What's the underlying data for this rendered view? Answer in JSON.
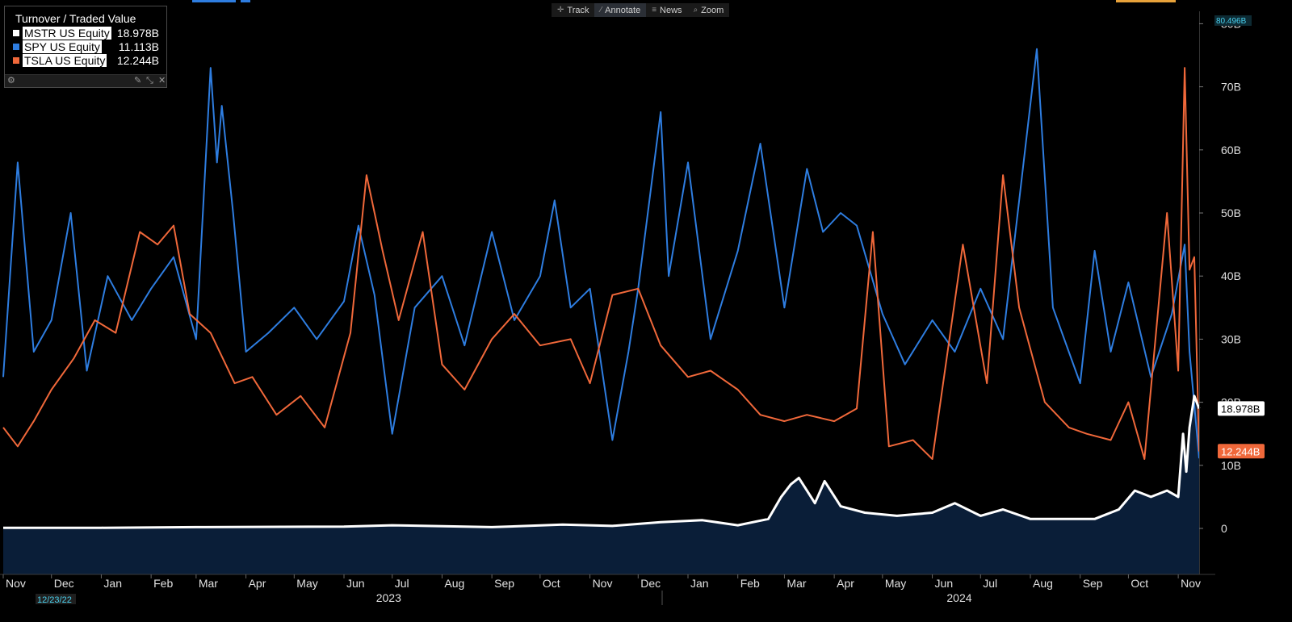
{
  "toolbar": {
    "track": "Track",
    "annotate": "Annotate",
    "news": "News",
    "zoom": "Zoom"
  },
  "legend": {
    "title": "Turnover / Traded Value",
    "items": [
      {
        "name": "MSTR US Equity",
        "value": "18.978B",
        "color": "#ffffff"
      },
      {
        "name": "SPY US Equity",
        "value": "11.113B",
        "color": "#2e7de0"
      },
      {
        "name": "TSLA US Equity",
        "value": "12.244B",
        "color": "#f0683a"
      }
    ],
    "footer_icons": [
      "gear-icon",
      "pin-icon",
      "collapse-icon",
      "close-icon"
    ]
  },
  "badges": {
    "top": "80.496B",
    "mstr": "18.978B",
    "tsla": "12.244B",
    "date": "12/23/22"
  },
  "chart_data": {
    "type": "line",
    "title": "Turnover / Traded Value",
    "y_unit": "B",
    "ylim": [
      -7,
      82
    ],
    "y_ticks": [
      "0",
      "10B",
      "20B",
      "30B",
      "40B",
      "50B",
      "60B",
      "70B",
      "80B"
    ],
    "x_tick_labels": [
      "Nov",
      "Dec",
      "Jan",
      "Feb",
      "Mar",
      "Apr",
      "May",
      "Jun",
      "Jul",
      "Aug",
      "Sep",
      "Oct",
      "Nov",
      "Dec",
      "Jan",
      "Feb",
      "Mar",
      "Apr",
      "May",
      "Jun",
      "Jul",
      "Aug",
      "Sep",
      "Oct",
      "Nov"
    ],
    "year_labels": [
      "2023",
      "2024"
    ],
    "x_start": "2022-11-01",
    "x_end": "2024-11-14",
    "series": [
      {
        "name": "SPY US Equity",
        "color": "#2e7de0",
        "values": [
          {
            "date": "2022-11-01",
            "v": 24
          },
          {
            "date": "2022-11-10",
            "v": 58
          },
          {
            "date": "2022-11-20",
            "v": 28
          },
          {
            "date": "2022-12-01",
            "v": 33
          },
          {
            "date": "2022-12-13",
            "v": 50
          },
          {
            "date": "2022-12-23",
            "v": 25
          },
          {
            "date": "2023-01-05",
            "v": 40
          },
          {
            "date": "2023-01-20",
            "v": 33
          },
          {
            "date": "2023-02-01",
            "v": 38
          },
          {
            "date": "2023-02-15",
            "v": 43
          },
          {
            "date": "2023-03-01",
            "v": 30
          },
          {
            "date": "2023-03-10",
            "v": 73
          },
          {
            "date": "2023-03-14",
            "v": 58
          },
          {
            "date": "2023-03-17",
            "v": 67
          },
          {
            "date": "2023-03-24",
            "v": 50
          },
          {
            "date": "2023-04-01",
            "v": 28
          },
          {
            "date": "2023-04-15",
            "v": 31
          },
          {
            "date": "2023-05-01",
            "v": 35
          },
          {
            "date": "2023-05-15",
            "v": 30
          },
          {
            "date": "2023-06-01",
            "v": 36
          },
          {
            "date": "2023-06-10",
            "v": 48
          },
          {
            "date": "2023-06-20",
            "v": 37
          },
          {
            "date": "2023-07-01",
            "v": 15
          },
          {
            "date": "2023-07-15",
            "v": 35
          },
          {
            "date": "2023-08-01",
            "v": 40
          },
          {
            "date": "2023-08-15",
            "v": 29
          },
          {
            "date": "2023-09-01",
            "v": 47
          },
          {
            "date": "2023-09-15",
            "v": 33
          },
          {
            "date": "2023-10-01",
            "v": 40
          },
          {
            "date": "2023-10-10",
            "v": 52
          },
          {
            "date": "2023-10-20",
            "v": 35
          },
          {
            "date": "2023-11-01",
            "v": 38
          },
          {
            "date": "2023-11-15",
            "v": 14
          },
          {
            "date": "2023-11-25",
            "v": 28
          },
          {
            "date": "2023-12-01",
            "v": 38
          },
          {
            "date": "2023-12-15",
            "v": 66
          },
          {
            "date": "2023-12-20",
            "v": 40
          },
          {
            "date": "2024-01-01",
            "v": 58
          },
          {
            "date": "2024-01-15",
            "v": 30
          },
          {
            "date": "2024-02-01",
            "v": 44
          },
          {
            "date": "2024-02-15",
            "v": 61
          },
          {
            "date": "2024-03-01",
            "v": 35
          },
          {
            "date": "2024-03-15",
            "v": 57
          },
          {
            "date": "2024-03-25",
            "v": 47
          },
          {
            "date": "2024-04-05",
            "v": 50
          },
          {
            "date": "2024-04-15",
            "v": 48
          },
          {
            "date": "2024-05-01",
            "v": 34
          },
          {
            "date": "2024-05-15",
            "v": 26
          },
          {
            "date": "2024-06-01",
            "v": 33
          },
          {
            "date": "2024-06-15",
            "v": 28
          },
          {
            "date": "2024-07-01",
            "v": 38
          },
          {
            "date": "2024-07-15",
            "v": 30
          },
          {
            "date": "2024-08-05",
            "v": 76
          },
          {
            "date": "2024-08-15",
            "v": 35
          },
          {
            "date": "2024-09-01",
            "v": 23
          },
          {
            "date": "2024-09-10",
            "v": 44
          },
          {
            "date": "2024-09-20",
            "v": 28
          },
          {
            "date": "2024-10-01",
            "v": 39
          },
          {
            "date": "2024-10-15",
            "v": 24
          },
          {
            "date": "2024-10-28",
            "v": 34
          },
          {
            "date": "2024-11-05",
            "v": 45
          },
          {
            "date": "2024-11-08",
            "v": 28
          },
          {
            "date": "2024-11-14",
            "v": 11.1
          }
        ]
      },
      {
        "name": "TSLA US Equity",
        "color": "#f0683a",
        "values": [
          {
            "date": "2022-11-01",
            "v": 16
          },
          {
            "date": "2022-11-10",
            "v": 13
          },
          {
            "date": "2022-11-20",
            "v": 17
          },
          {
            "date": "2022-12-01",
            "v": 22
          },
          {
            "date": "2022-12-15",
            "v": 27
          },
          {
            "date": "2022-12-28",
            "v": 33
          },
          {
            "date": "2023-01-10",
            "v": 31
          },
          {
            "date": "2023-01-25",
            "v": 47
          },
          {
            "date": "2023-02-05",
            "v": 45
          },
          {
            "date": "2023-02-15",
            "v": 48
          },
          {
            "date": "2023-02-25",
            "v": 34
          },
          {
            "date": "2023-03-10",
            "v": 31
          },
          {
            "date": "2023-03-25",
            "v": 23
          },
          {
            "date": "2023-04-05",
            "v": 24
          },
          {
            "date": "2023-04-20",
            "v": 18
          },
          {
            "date": "2023-05-05",
            "v": 21
          },
          {
            "date": "2023-05-20",
            "v": 16
          },
          {
            "date": "2023-06-05",
            "v": 31
          },
          {
            "date": "2023-06-15",
            "v": 56
          },
          {
            "date": "2023-06-25",
            "v": 44
          },
          {
            "date": "2023-07-05",
            "v": 33
          },
          {
            "date": "2023-07-20",
            "v": 47
          },
          {
            "date": "2023-08-01",
            "v": 26
          },
          {
            "date": "2023-08-15",
            "v": 22
          },
          {
            "date": "2023-09-01",
            "v": 30
          },
          {
            "date": "2023-09-15",
            "v": 34
          },
          {
            "date": "2023-10-01",
            "v": 29
          },
          {
            "date": "2023-10-20",
            "v": 30
          },
          {
            "date": "2023-11-01",
            "v": 23
          },
          {
            "date": "2023-11-15",
            "v": 37
          },
          {
            "date": "2023-12-01",
            "v": 38
          },
          {
            "date": "2023-12-15",
            "v": 29
          },
          {
            "date": "2024-01-01",
            "v": 24
          },
          {
            "date": "2024-01-15",
            "v": 25
          },
          {
            "date": "2024-02-01",
            "v": 22
          },
          {
            "date": "2024-02-15",
            "v": 18
          },
          {
            "date": "2024-03-01",
            "v": 17
          },
          {
            "date": "2024-03-15",
            "v": 18
          },
          {
            "date": "2024-04-01",
            "v": 17
          },
          {
            "date": "2024-04-15",
            "v": 19
          },
          {
            "date": "2024-04-25",
            "v": 47
          },
          {
            "date": "2024-05-05",
            "v": 13
          },
          {
            "date": "2024-05-20",
            "v": 14
          },
          {
            "date": "2024-06-01",
            "v": 11
          },
          {
            "date": "2024-06-20",
            "v": 45
          },
          {
            "date": "2024-07-05",
            "v": 23
          },
          {
            "date": "2024-07-15",
            "v": 56
          },
          {
            "date": "2024-07-25",
            "v": 35
          },
          {
            "date": "2024-08-10",
            "v": 20
          },
          {
            "date": "2024-08-25",
            "v": 16
          },
          {
            "date": "2024-09-05",
            "v": 15
          },
          {
            "date": "2024-09-20",
            "v": 14
          },
          {
            "date": "2024-10-01",
            "v": 20
          },
          {
            "date": "2024-10-11",
            "v": 11
          },
          {
            "date": "2024-10-25",
            "v": 50
          },
          {
            "date": "2024-11-01",
            "v": 25
          },
          {
            "date": "2024-11-05",
            "v": 73
          },
          {
            "date": "2024-11-08",
            "v": 41
          },
          {
            "date": "2024-11-11",
            "v": 43
          },
          {
            "date": "2024-11-14",
            "v": 12.2
          }
        ]
      },
      {
        "name": "MSTR US Equity",
        "color": "#ffffff",
        "area": "#0a1e38",
        "values": [
          {
            "date": "2022-11-01",
            "v": 0.1
          },
          {
            "date": "2023-01-01",
            "v": 0.1
          },
          {
            "date": "2023-03-01",
            "v": 0.2
          },
          {
            "date": "2023-06-01",
            "v": 0.3
          },
          {
            "date": "2023-07-01",
            "v": 0.5
          },
          {
            "date": "2023-09-01",
            "v": 0.2
          },
          {
            "date": "2023-10-15",
            "v": 0.6
          },
          {
            "date": "2023-11-15",
            "v": 0.4
          },
          {
            "date": "2023-12-15",
            "v": 1.0
          },
          {
            "date": "2024-01-10",
            "v": 1.3
          },
          {
            "date": "2024-02-01",
            "v": 0.5
          },
          {
            "date": "2024-02-20",
            "v": 1.5
          },
          {
            "date": "2024-02-28",
            "v": 5
          },
          {
            "date": "2024-03-05",
            "v": 7
          },
          {
            "date": "2024-03-10",
            "v": 8
          },
          {
            "date": "2024-03-15",
            "v": 6
          },
          {
            "date": "2024-03-20",
            "v": 4
          },
          {
            "date": "2024-03-26",
            "v": 7.5
          },
          {
            "date": "2024-04-05",
            "v": 3.5
          },
          {
            "date": "2024-04-20",
            "v": 2.5
          },
          {
            "date": "2024-05-10",
            "v": 2
          },
          {
            "date": "2024-06-01",
            "v": 2.5
          },
          {
            "date": "2024-06-15",
            "v": 4
          },
          {
            "date": "2024-07-01",
            "v": 2
          },
          {
            "date": "2024-07-15",
            "v": 3
          },
          {
            "date": "2024-08-01",
            "v": 1.5
          },
          {
            "date": "2024-08-20",
            "v": 1.5
          },
          {
            "date": "2024-09-10",
            "v": 1.5
          },
          {
            "date": "2024-09-25",
            "v": 3
          },
          {
            "date": "2024-10-05",
            "v": 6
          },
          {
            "date": "2024-10-15",
            "v": 5
          },
          {
            "date": "2024-10-25",
            "v": 6
          },
          {
            "date": "2024-11-01",
            "v": 5
          },
          {
            "date": "2024-11-04",
            "v": 15
          },
          {
            "date": "2024-11-06",
            "v": 9
          },
          {
            "date": "2024-11-08",
            "v": 16
          },
          {
            "date": "2024-11-11",
            "v": 21
          },
          {
            "date": "2024-11-14",
            "v": 19.0
          }
        ]
      }
    ]
  }
}
